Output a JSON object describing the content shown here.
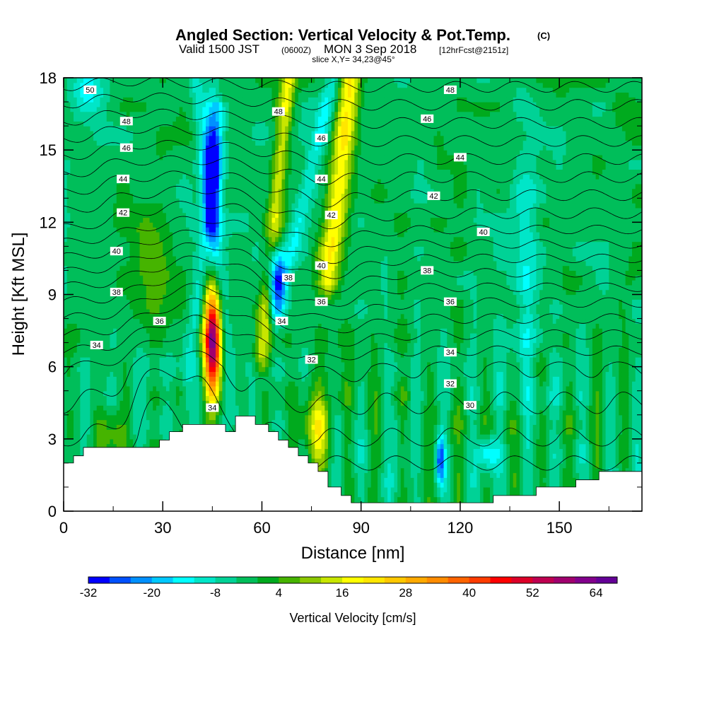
{
  "title": {
    "main": "Angled Section: Vertical Velocity & Pot.Temp.",
    "copyright": "(C)",
    "valid_prefix": "Valid 1500 JST",
    "valid_z": "(0600Z)",
    "valid_date": "MON 3 Sep 2018",
    "valid_fcst": "[12hrFcst@2151z]",
    "slice": "slice X,Y= 34,23@45°"
  },
  "chart_data": {
    "type": "heatmap",
    "xlabel": "Distance [nm]",
    "ylabel": "Height [Kft MSL]",
    "xlim": [
      0,
      175
    ],
    "ylim": [
      0,
      18
    ],
    "xticks": [
      0,
      30,
      60,
      90,
      120,
      150
    ],
    "xtick_labels": [
      "0",
      "30",
      "60",
      "90",
      "120",
      "150"
    ],
    "yticks": [
      0,
      3,
      6,
      9,
      12,
      15,
      18
    ],
    "ytick_labels": [
      "0",
      "3",
      "6",
      "9",
      "12",
      "15",
      "18"
    ],
    "colorbar": {
      "label": "Vertical Velocity [cm/s]",
      "min": -32,
      "max": 68,
      "step": 4,
      "tick_values": [
        -32,
        -20,
        -8,
        4,
        16,
        28,
        40,
        52,
        64
      ],
      "tick_labels": [
        "-32",
        "-20",
        "-8",
        "4",
        "16",
        "28",
        "40",
        "52",
        "64"
      ],
      "colors": [
        "#0000ff",
        "#0050ff",
        "#0090ff",
        "#00c8ff",
        "#00ffff",
        "#00e6c8",
        "#00d296",
        "#00be5a",
        "#00aa1e",
        "#46b400",
        "#8cc800",
        "#c8e600",
        "#ffff00",
        "#ffe600",
        "#ffc800",
        "#ffaa00",
        "#ff8c00",
        "#ff6400",
        "#ff3c00",
        "#ff0000",
        "#dc0028",
        "#be0050",
        "#a0006e",
        "#82008c",
        "#640096"
      ]
    },
    "terrain": [
      [
        0,
        2
      ],
      [
        3,
        2
      ],
      [
        3,
        2.3
      ],
      [
        6,
        2.3
      ],
      [
        6,
        2.65
      ],
      [
        29,
        2.65
      ],
      [
        29,
        2.95
      ],
      [
        32,
        2.95
      ],
      [
        32,
        3.3
      ],
      [
        36,
        3.3
      ],
      [
        36,
        3.6
      ],
      [
        49,
        3.6
      ],
      [
        49,
        3.3
      ],
      [
        52,
        3.3
      ],
      [
        52,
        3.95
      ],
      [
        58,
        3.95
      ],
      [
        58,
        3.6
      ],
      [
        62,
        3.6
      ],
      [
        62,
        3.3
      ],
      [
        65,
        3.3
      ],
      [
        65,
        2.95
      ],
      [
        68,
        2.95
      ],
      [
        68,
        2.65
      ],
      [
        71,
        2.65
      ],
      [
        71,
        2.3
      ],
      [
        74,
        2.3
      ],
      [
        74,
        2
      ],
      [
        77,
        2
      ],
      [
        77,
        1.65
      ],
      [
        80,
        1.65
      ],
      [
        80,
        1
      ],
      [
        84,
        1
      ],
      [
        84,
        0.65
      ],
      [
        87,
        0.65
      ],
      [
        87,
        0.35
      ],
      [
        130,
        0.35
      ],
      [
        130,
        0.65
      ],
      [
        143,
        0.65
      ],
      [
        143,
        1
      ],
      [
        155,
        1
      ],
      [
        155,
        1.3
      ],
      [
        162,
        1.3
      ],
      [
        162,
        1.65
      ],
      [
        175,
        1.65
      ]
    ],
    "velocity_features": [
      {
        "x": 45,
        "y": 7,
        "sx": 2.5,
        "sy": 2.3,
        "peak": 62
      },
      {
        "x": 45,
        "y": 14,
        "sx": 2.5,
        "sy": 2.8,
        "peak": -34
      },
      {
        "x": 64,
        "y": 9.8,
        "sx": 2.7,
        "sy": 1.3,
        "peak": -30
      },
      {
        "x": 77,
        "y": 3.5,
        "sx": 3.5,
        "sy": 1.7,
        "peak": 18
      },
      {
        "x": 114,
        "y": 2.2,
        "sx": 1.5,
        "sy": 0.9,
        "peak": -26
      },
      {
        "x": 128,
        "y": 2.4,
        "sx": 3,
        "sy": 0.7,
        "peak": -18
      },
      {
        "x": 15,
        "y": 3.2,
        "sx": 4,
        "sy": 1,
        "peak": 8
      },
      {
        "x": 8,
        "y": 17.5,
        "sx": 6,
        "sy": 1.2,
        "peak": -12
      },
      {
        "x": 27,
        "y": 10.5,
        "sx": 7,
        "sy": 2,
        "peak": 8
      },
      {
        "x": 140,
        "y": 10,
        "sx": 4,
        "sy": 6,
        "peak": -8
      }
    ],
    "velocity_ridges": [
      {
        "x0": 60,
        "y0": 6.5,
        "x1": 68,
        "y1": 18,
        "w": 2.4,
        "peak": 18
      },
      {
        "x0": 80,
        "y0": 9.5,
        "x1": 87,
        "y1": 18,
        "w": 3.4,
        "peak": 22
      },
      {
        "x0": 64,
        "y0": 8.2,
        "x1": 82,
        "y1": 18,
        "w": 2.6,
        "peak": -10
      },
      {
        "x0": 52,
        "y0": 4,
        "x1": 40,
        "y1": 18,
        "w": 2.3,
        "peak": -8
      },
      {
        "x0": 36,
        "y0": 4,
        "x1": 47,
        "y1": 16,
        "w": 2,
        "peak": -6
      }
    ],
    "theta_profile": {
      "heights": [
        1,
        3,
        6,
        9,
        12,
        15,
        18
      ],
      "values": [
        29,
        31,
        33,
        37.5,
        42.5,
        46.5,
        50.5
      ]
    },
    "theta_perturbations": [
      {
        "x": 30,
        "y": 4,
        "amp": -1.7,
        "sx": 12,
        "sy": 4
      },
      {
        "x": 45,
        "y": 10,
        "amp": -2.0,
        "sx": 20,
        "sy": 5
      },
      {
        "x": 75,
        "y": 9.5,
        "amp": 1.4,
        "sx": 18,
        "sy": 3
      },
      {
        "x": 20,
        "y": 14,
        "amp": -0.7,
        "sx": 15,
        "sy": 4
      }
    ],
    "theta_contour_levels": [
      30,
      31,
      32,
      33,
      34,
      35,
      36,
      37,
      38,
      39,
      40,
      41,
      42,
      43,
      44,
      45,
      46,
      47,
      48,
      49,
      50,
      51
    ],
    "contour_labels": [
      {
        "x": 8,
        "y": 17.5,
        "text": "50"
      },
      {
        "x": 19,
        "y": 16.2,
        "text": "48"
      },
      {
        "x": 19,
        "y": 15.1,
        "text": "46"
      },
      {
        "x": 18,
        "y": 13.8,
        "text": "44"
      },
      {
        "x": 18,
        "y": 12.4,
        "text": "42"
      },
      {
        "x": 16,
        "y": 10.8,
        "text": "40"
      },
      {
        "x": 16,
        "y": 9.1,
        "text": "38"
      },
      {
        "x": 29,
        "y": 7.9,
        "text": "36"
      },
      {
        "x": 10,
        "y": 6.9,
        "text": "34"
      },
      {
        "x": 65,
        "y": 16.6,
        "text": "48"
      },
      {
        "x": 78,
        "y": 15.5,
        "text": "46"
      },
      {
        "x": 78,
        "y": 13.8,
        "text": "44"
      },
      {
        "x": 81,
        "y": 12.3,
        "text": "42"
      },
      {
        "x": 78,
        "y": 10.2,
        "text": "40"
      },
      {
        "x": 68,
        "y": 9.7,
        "text": "38"
      },
      {
        "x": 78,
        "y": 8.7,
        "text": "36"
      },
      {
        "x": 66,
        "y": 7.9,
        "text": "34"
      },
      {
        "x": 75,
        "y": 6.3,
        "text": "32"
      },
      {
        "x": 45,
        "y": 4.3,
        "text": "34"
      },
      {
        "x": 117,
        "y": 17.5,
        "text": "48"
      },
      {
        "x": 110,
        "y": 16.3,
        "text": "46"
      },
      {
        "x": 120,
        "y": 14.7,
        "text": "44"
      },
      {
        "x": 112,
        "y": 13.1,
        "text": "42"
      },
      {
        "x": 127,
        "y": 11.6,
        "text": "40"
      },
      {
        "x": 110,
        "y": 10,
        "text": "38"
      },
      {
        "x": 117,
        "y": 8.7,
        "text": "36"
      },
      {
        "x": 117,
        "y": 6.6,
        "text": "34"
      },
      {
        "x": 117,
        "y": 5.3,
        "text": "32"
      },
      {
        "x": 123,
        "y": 4.4,
        "text": "30"
      }
    ]
  }
}
